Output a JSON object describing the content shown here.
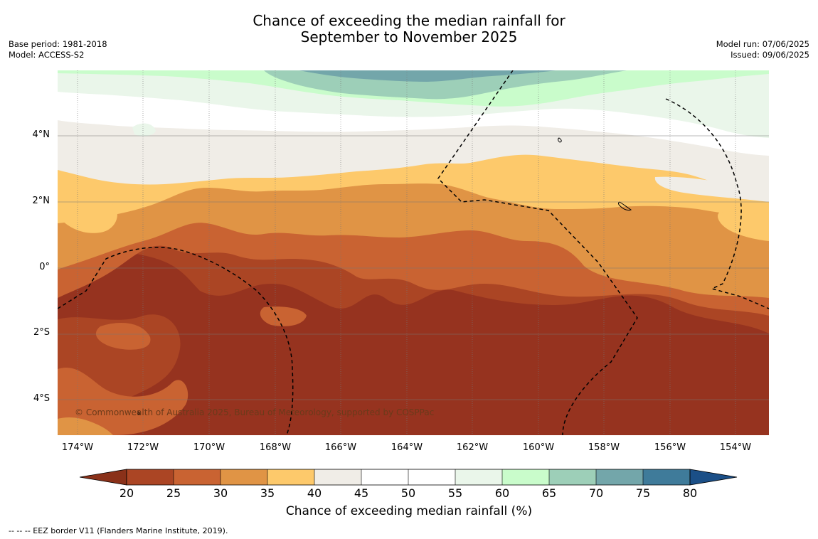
{
  "title_line1": "Chance of exceeding the median rainfall for",
  "title_line2": "September to November 2025",
  "meta_left": {
    "base_period": "Base period: 1981-2018",
    "model": "Model: ACCESS-S2"
  },
  "meta_right": {
    "model_run": "Model run: 07/06/2025",
    "issued": "Issued: 09/06/2025"
  },
  "copyright": "© Commonwealth of Australia 2025, Bureau of Meteorology, supported by COSPPac",
  "lat_labels": [
    "4°N",
    "2°N",
    "0°",
    "2°S",
    "4°S"
  ],
  "lon_labels": [
    "174°W",
    "172°W",
    "170°W",
    "168°W",
    "166°W",
    "164°W",
    "162°W",
    "160°W",
    "158°W",
    "156°W",
    "154°W"
  ],
  "colorbar": {
    "title": "Chance of exceeding median rainfall (%)",
    "ticks": [
      "20",
      "25",
      "30",
      "35",
      "40",
      "45",
      "50",
      "55",
      "60",
      "65",
      "70",
      "75",
      "80"
    ],
    "colors": {
      "under": "#8a3119",
      "c20_25": "#ab4524",
      "c25_30": "#c96332",
      "c30_35": "#e09445",
      "c35_40": "#fdc96b",
      "c40_45": "#f0ede7",
      "c45_50": "#ffffff",
      "c50_55": "#ffffff",
      "c55_60": "#eaf6ea",
      "c60_65": "#c9fccb",
      "c65_70": "#9dcfb8",
      "c70_75": "#73a6aa",
      "c75_80": "#3f7b9a",
      "over": "#1b4f87",
      "map_deep": "#96331f"
    }
  },
  "footnote": "--  --  -- EEZ border V11 (Flanders Marine Institute, 2019)."
}
